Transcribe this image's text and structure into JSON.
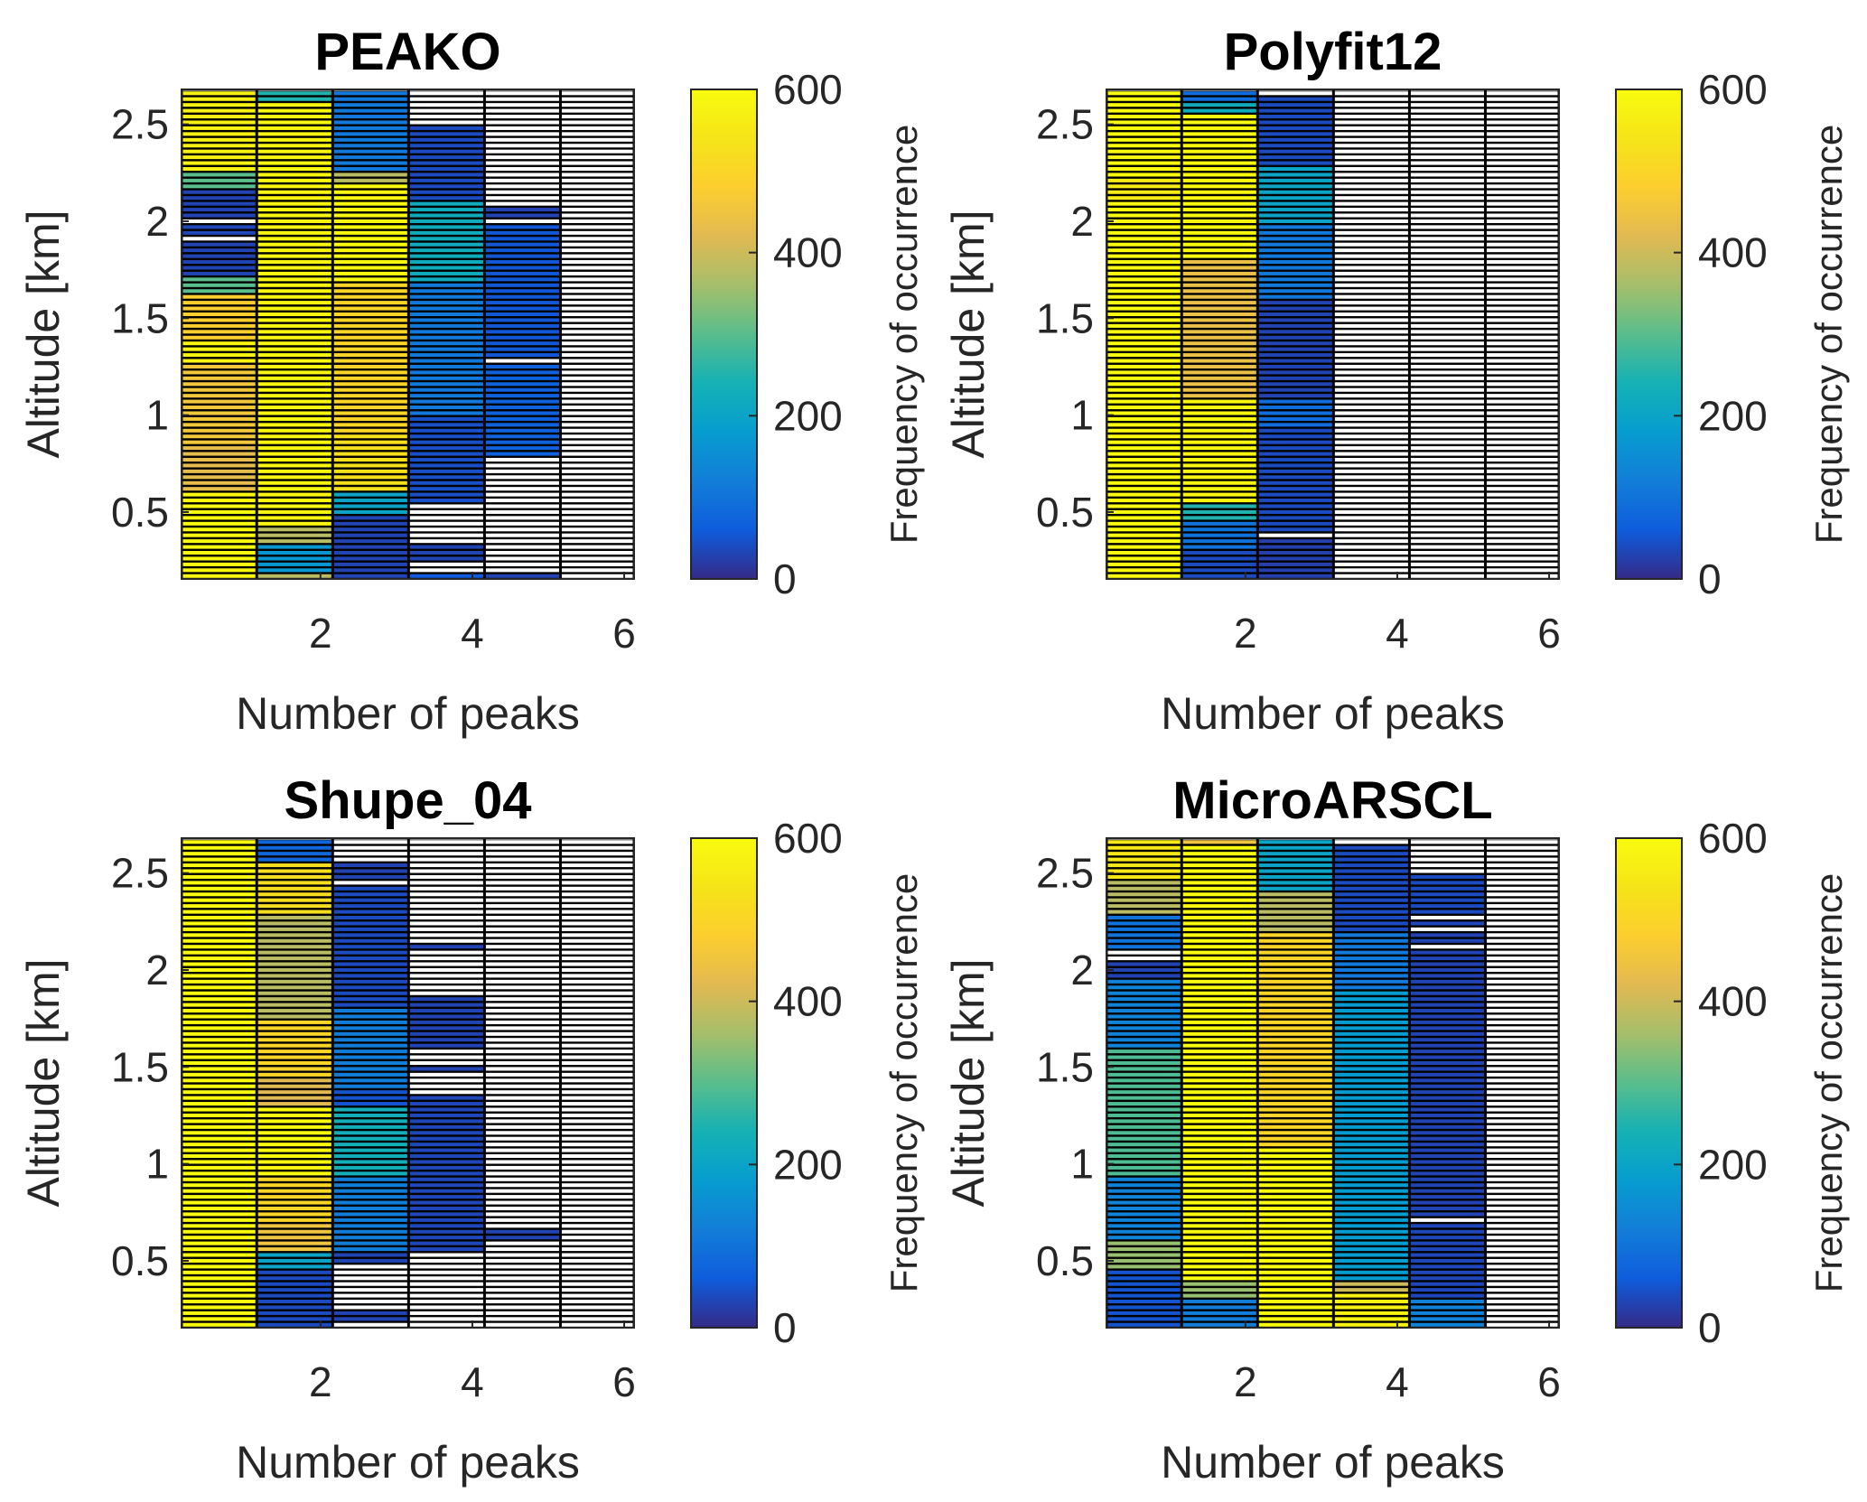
{
  "colormap": "parula",
  "empty_color": "#ffffff",
  "grid_color": "#000000",
  "chart_data": [
    {
      "type": "heatmap",
      "title": "PEAKO",
      "xlabel": "Number of peaks",
      "ylabel": "Altitude [km]",
      "colorbar_label": "Frequency of occurrence",
      "xlim": [
        0.17,
        6.13
      ],
      "ylim": [
        0.155,
        2.68
      ],
      "xticks": [
        2,
        4,
        6
      ],
      "yticks": [
        0.5,
        1,
        1.5,
        2,
        2.5
      ],
      "clim": [
        0,
        600
      ],
      "cticks": [
        0,
        200,
        400,
        600
      ],
      "x_edges": [
        0.17,
        1.16,
        2.16,
        3.16,
        4.16,
        5.16,
        6.13
      ],
      "row_height_km": 0.03,
      "columns": [
        [
          [
            2.26,
            2.68,
            570
          ],
          [
            2.17,
            2.26,
            300
          ],
          [
            2.03,
            2.17,
            30
          ],
          [
            1.99,
            2.03,
            null
          ],
          [
            1.93,
            1.99,
            35
          ],
          [
            1.89,
            1.93,
            null
          ],
          [
            1.72,
            1.89,
            30
          ],
          [
            1.62,
            1.72,
            300
          ],
          [
            1.4,
            1.62,
            480
          ],
          [
            1.27,
            1.4,
            580
          ],
          [
            0.85,
            1.27,
            460
          ],
          [
            0.6,
            0.85,
            430
          ],
          [
            0.155,
            0.6,
            595
          ]
        ],
        [
          [
            2.62,
            2.68,
            250
          ],
          [
            0.42,
            2.62,
            585
          ],
          [
            0.35,
            0.42,
            380
          ],
          [
            0.2,
            0.35,
            170
          ],
          [
            0.155,
            0.2,
            380
          ]
        ],
        [
          [
            2.25,
            2.68,
            110
          ],
          [
            2.2,
            2.25,
            380
          ],
          [
            1.7,
            2.2,
            595
          ],
          [
            0.9,
            1.7,
            500
          ],
          [
            0.6,
            0.9,
            530
          ],
          [
            0.5,
            0.6,
            200
          ],
          [
            0.155,
            0.5,
            30
          ]
        ],
        [
          [
            2.5,
            2.68,
            null
          ],
          [
            2.1,
            2.5,
            40
          ],
          [
            1.7,
            2.1,
            220
          ],
          [
            1.0,
            1.7,
            110
          ],
          [
            0.55,
            1.0,
            45
          ],
          [
            0.35,
            0.55,
            null
          ],
          [
            0.25,
            0.35,
            30
          ],
          [
            0.2,
            0.25,
            null
          ],
          [
            0.155,
            0.2,
            60
          ]
        ],
        [
          [
            2.08,
            2.68,
            null
          ],
          [
            2.03,
            2.08,
            30
          ],
          [
            2.0,
            2.03,
            null
          ],
          [
            1.3,
            2.0,
            55
          ],
          [
            1.27,
            1.3,
            null
          ],
          [
            0.8,
            1.27,
            70
          ],
          [
            0.18,
            0.8,
            null
          ],
          [
            0.155,
            0.18,
            30
          ]
        ],
        [
          [
            0.155,
            2.68,
            null
          ]
        ]
      ]
    },
    {
      "type": "heatmap",
      "title": "Polyfit12",
      "xlabel": "Number of peaks",
      "ylabel": "Altitude [km]",
      "colorbar_label": "Frequency of occurrence",
      "xlim": [
        0.17,
        6.13
      ],
      "ylim": [
        0.155,
        2.68
      ],
      "xticks": [
        2,
        4,
        6
      ],
      "yticks": [
        0.5,
        1,
        1.5,
        2,
        2.5
      ],
      "clim": [
        0,
        600
      ],
      "cticks": [
        0,
        200,
        400,
        600
      ],
      "x_edges": [
        0.17,
        1.16,
        2.16,
        3.16,
        4.16,
        5.16,
        6.13
      ],
      "row_height_km": 0.03,
      "columns": [
        [
          [
            2.22,
            2.68,
            598
          ],
          [
            2.1,
            2.22,
            560
          ],
          [
            0.155,
            2.1,
            598
          ]
        ],
        [
          [
            2.62,
            2.68,
            90
          ],
          [
            2.55,
            2.62,
            220
          ],
          [
            1.8,
            2.55,
            595
          ],
          [
            1.1,
            1.8,
            440
          ],
          [
            0.55,
            1.1,
            585
          ],
          [
            0.45,
            0.55,
            250
          ],
          [
            0.3,
            0.45,
            100
          ],
          [
            0.155,
            0.3,
            40
          ]
        ],
        [
          [
            2.65,
            2.68,
            null
          ],
          [
            2.3,
            2.65,
            40
          ],
          [
            2.0,
            2.3,
            200
          ],
          [
            1.6,
            2.0,
            110
          ],
          [
            1.1,
            1.6,
            30
          ],
          [
            0.95,
            1.1,
            90
          ],
          [
            0.4,
            0.95,
            40
          ],
          [
            0.37,
            0.4,
            null
          ],
          [
            0.155,
            0.37,
            25
          ]
        ],
        [
          [
            0.155,
            2.68,
            null
          ]
        ],
        [
          [
            0.155,
            2.68,
            null
          ]
        ],
        [
          [
            0.155,
            2.68,
            null
          ]
        ]
      ]
    },
    {
      "type": "heatmap",
      "title": "Shupe_04",
      "xlabel": "Number of peaks",
      "ylabel": "Altitude [km]",
      "colorbar_label": "Frequency of occurrence",
      "xlim": [
        0.17,
        6.13
      ],
      "ylim": [
        0.155,
        2.68
      ],
      "xticks": [
        2,
        4,
        6
      ],
      "yticks": [
        0.5,
        1,
        1.5,
        2,
        2.5
      ],
      "clim": [
        0,
        600
      ],
      "cticks": [
        0,
        200,
        400,
        600
      ],
      "x_edges": [
        0.17,
        1.16,
        2.16,
        3.16,
        4.16,
        5.16,
        6.13
      ],
      "row_height_km": 0.03,
      "columns": [
        [
          [
            0.155,
            2.68,
            598
          ]
        ],
        [
          [
            2.55,
            2.68,
            80
          ],
          [
            2.3,
            2.55,
            520
          ],
          [
            1.75,
            2.3,
            380
          ],
          [
            1.45,
            1.75,
            500
          ],
          [
            1.3,
            1.45,
            420
          ],
          [
            0.95,
            1.3,
            595
          ],
          [
            0.7,
            0.95,
            500
          ],
          [
            0.55,
            0.7,
            450
          ],
          [
            0.45,
            0.55,
            200
          ],
          [
            0.155,
            0.45,
            40
          ]
        ],
        [
          [
            2.55,
            2.68,
            null
          ],
          [
            2.45,
            2.55,
            30
          ],
          [
            2.42,
            2.45,
            null
          ],
          [
            1.8,
            2.42,
            40
          ],
          [
            1.4,
            1.8,
            120
          ],
          [
            1.3,
            1.4,
            50
          ],
          [
            0.95,
            1.3,
            230
          ],
          [
            0.55,
            0.95,
            120
          ],
          [
            0.48,
            0.55,
            30
          ],
          [
            0.25,
            0.48,
            null
          ],
          [
            0.2,
            0.25,
            30
          ],
          [
            0.155,
            0.2,
            null
          ]
        ],
        [
          [
            2.15,
            2.68,
            null
          ],
          [
            2.12,
            2.15,
            30
          ],
          [
            1.88,
            2.12,
            null
          ],
          [
            1.6,
            1.88,
            30
          ],
          [
            1.52,
            1.6,
            null
          ],
          [
            1.49,
            1.52,
            30
          ],
          [
            1.35,
            1.49,
            null
          ],
          [
            0.55,
            1.35,
            35
          ],
          [
            0.155,
            0.55,
            null
          ]
        ],
        [
          [
            0.68,
            2.68,
            null
          ],
          [
            0.6,
            0.68,
            30
          ],
          [
            0.155,
            0.6,
            null
          ]
        ],
        [
          [
            0.155,
            2.68,
            null
          ]
        ]
      ]
    },
    {
      "type": "heatmap",
      "title": "MicroARSCL",
      "xlabel": "Number of peaks",
      "ylabel": "Altitude [km]",
      "colorbar_label": "Frequency of occurrence",
      "xlim": [
        0.17,
        6.13
      ],
      "ylim": [
        0.155,
        2.68
      ],
      "xticks": [
        2,
        4,
        6
      ],
      "yticks": [
        0.5,
        1,
        1.5,
        2,
        2.5
      ],
      "clim": [
        0,
        600
      ],
      "cticks": [
        0,
        200,
        400,
        600
      ],
      "x_edges": [
        0.17,
        1.16,
        2.16,
        3.16,
        4.16,
        5.16,
        6.13
      ],
      "row_height_km": 0.03,
      "columns": [
        [
          [
            2.45,
            2.68,
            550
          ],
          [
            2.3,
            2.45,
            380
          ],
          [
            2.1,
            2.3,
            100
          ],
          [
            2.04,
            2.1,
            null
          ],
          [
            1.95,
            2.04,
            30
          ],
          [
            1.6,
            1.95,
            130
          ],
          [
            0.95,
            1.6,
            290
          ],
          [
            0.6,
            0.95,
            130
          ],
          [
            0.45,
            0.6,
            350
          ],
          [
            0.155,
            0.45,
            50
          ]
        ],
        [
          [
            2.65,
            2.68,
            450
          ],
          [
            0.4,
            2.65,
            598
          ],
          [
            0.3,
            0.4,
            350
          ],
          [
            0.155,
            0.3,
            120
          ]
        ],
        [
          [
            2.4,
            2.68,
            200
          ],
          [
            2.2,
            2.4,
            380
          ],
          [
            1.1,
            2.2,
            500
          ],
          [
            0.155,
            1.1,
            598
          ]
        ],
        [
          [
            2.65,
            2.68,
            null
          ],
          [
            2.2,
            2.65,
            40
          ],
          [
            1.9,
            2.2,
            110
          ],
          [
            0.4,
            1.9,
            180
          ],
          [
            0.35,
            0.4,
            400
          ],
          [
            0.155,
            0.35,
            580
          ]
        ],
        [
          [
            2.48,
            2.68,
            null
          ],
          [
            2.3,
            2.48,
            40
          ],
          [
            2.27,
            2.3,
            null
          ],
          [
            2.22,
            2.27,
            35
          ],
          [
            2.19,
            2.22,
            null
          ],
          [
            2.15,
            2.19,
            30
          ],
          [
            2.12,
            2.15,
            null
          ],
          [
            0.72,
            2.12,
            30
          ],
          [
            0.69,
            0.72,
            null
          ],
          [
            0.3,
            0.69,
            35
          ],
          [
            0.155,
            0.3,
            130
          ]
        ],
        [
          [
            0.155,
            2.68,
            null
          ]
        ]
      ]
    }
  ]
}
